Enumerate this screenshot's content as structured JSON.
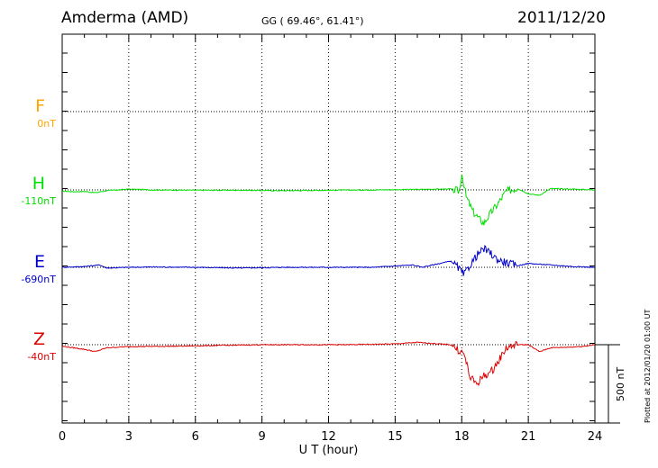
{
  "header": {
    "station": "Amderma (AMD)",
    "coords": "GG ( 69.46°,  61.41°)",
    "date": "2011/12/20"
  },
  "plotted_note": "Plotted at 2012/01/20 01:00 UT",
  "scale_label": "500 nT",
  "components": [
    {
      "letter": "F",
      "baseline": "0nT",
      "color": "#ffa500"
    },
    {
      "letter": "H",
      "baseline": "-110nT",
      "color": "#00dd00"
    },
    {
      "letter": "E",
      "baseline": "-690nT",
      "color": "#0000cc"
    },
    {
      "letter": "Z",
      "baseline": "-40nT",
      "color": "#dd0000"
    }
  ],
  "chart_data": {
    "type": "line",
    "xlabel": "U T (hour)",
    "xlim": [
      0,
      24
    ],
    "x_ticks": [
      "0",
      "3",
      "6",
      "9",
      "12",
      "15",
      "18",
      "21",
      "24"
    ],
    "scale_bar_nT": 500,
    "grid": "dotted",
    "series": [
      {
        "name": "H",
        "unit": "nT offset from baseline",
        "x": [
          0,
          0.5,
          1,
          1.5,
          2,
          3,
          4,
          6,
          8,
          10,
          12,
          14,
          16,
          17.5,
          17.9,
          18.0,
          18.2,
          18.5,
          18.8,
          19.0,
          19.3,
          19.6,
          20.0,
          20.5,
          21.0,
          21.5,
          22.0,
          23.0,
          24.0
        ],
        "y": [
          -8,
          -12,
          -10,
          -18,
          -5,
          5,
          0,
          -2,
          -2,
          -5,
          -2,
          0,
          3,
          6,
          -10,
          110,
          -45,
          -140,
          -190,
          -215,
          -150,
          -95,
          -10,
          10,
          -25,
          -35,
          8,
          5,
          0
        ]
      },
      {
        "name": "E",
        "unit": "nT offset from baseline",
        "x": [
          0,
          1,
          1.7,
          2,
          3,
          4,
          6,
          8,
          10,
          12,
          14,
          15.8,
          16.2,
          17.5,
          17.8,
          18.1,
          18.4,
          18.7,
          19.0,
          19.3,
          19.6,
          20.0,
          20.5,
          21.0,
          22.0,
          23.0,
          24.0
        ],
        "y": [
          0,
          5,
          15,
          -5,
          0,
          2,
          0,
          -5,
          0,
          0,
          0,
          15,
          0,
          40,
          5,
          -50,
          20,
          80,
          120,
          90,
          50,
          30,
          10,
          25,
          15,
          5,
          0
        ]
      },
      {
        "name": "Z",
        "unit": "nT offset from baseline",
        "x": [
          0,
          0.5,
          1,
          1.5,
          2,
          3,
          5,
          7,
          9,
          11,
          13,
          15,
          16,
          17.5,
          17.8,
          18.1,
          18.4,
          18.7,
          19.0,
          19.3,
          19.6,
          20.0,
          20.5,
          21.0,
          21.5,
          22.0,
          23.0,
          23.5,
          24.0
        ],
        "y": [
          -10,
          -20,
          -30,
          -45,
          -20,
          -12,
          -10,
          -5,
          0,
          0,
          0,
          5,
          15,
          0,
          -30,
          -60,
          -220,
          -250,
          -200,
          -180,
          -120,
          -20,
          0,
          0,
          -45,
          -20,
          -15,
          -10,
          0
        ]
      }
    ]
  }
}
